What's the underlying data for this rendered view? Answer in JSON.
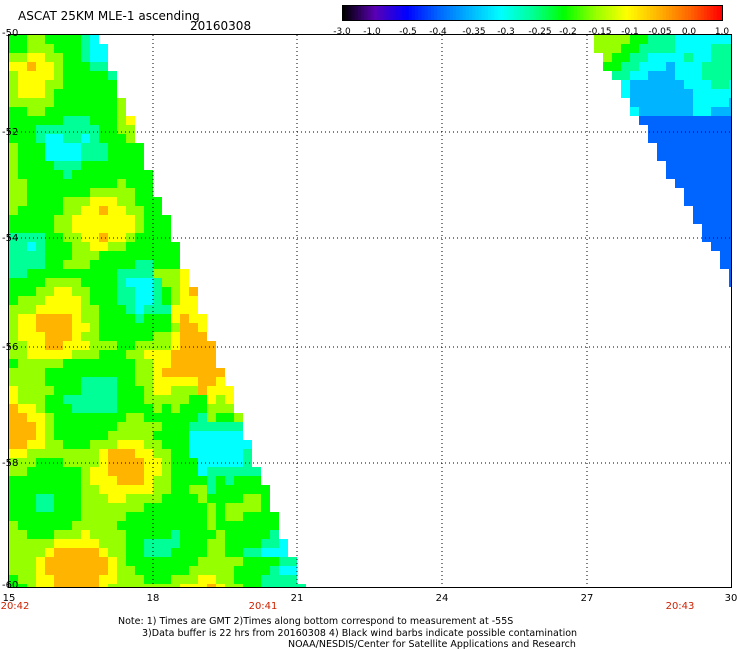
{
  "header": {
    "title": "ASCAT 25KM MLE-1 ascending",
    "date": "20160308"
  },
  "colorbar": {
    "labels": [
      "-3.0",
      "-1.0",
      "-0.5",
      "-0.4",
      "-0.35",
      "-0.3",
      "-0.25",
      "-0.2",
      "-0.15",
      "-0.1",
      "-0.05",
      "0.0",
      "1.0"
    ],
    "colors": [
      "#000000",
      "#5a00b4",
      "#0000ff",
      "#0064ff",
      "#00b4ff",
      "#00ffff",
      "#00ff96",
      "#00ff00",
      "#96ff00",
      "#ffff00",
      "#ffb400",
      "#ff6400",
      "#ff0000"
    ]
  },
  "map": {
    "lat_labels": [
      "-50",
      "-52",
      "-54",
      "-56",
      "-58",
      "-60"
    ],
    "lon_labels": [
      "15",
      "18",
      "21",
      "24",
      "27",
      "30"
    ],
    "time_labels": [
      "20:42",
      "20:41",
      "20:43"
    ]
  },
  "notes": {
    "line1": "Note: 1) Times are GMT 2)Times along bottom correspond to measurement at -55S",
    "line2": "3)Data buffer is 22 hrs from 20160308 4) Black wind barbs indicate possible contamination",
    "line3": "NOAA/NESDIS/Center for Satellite Applications and Research"
  }
}
